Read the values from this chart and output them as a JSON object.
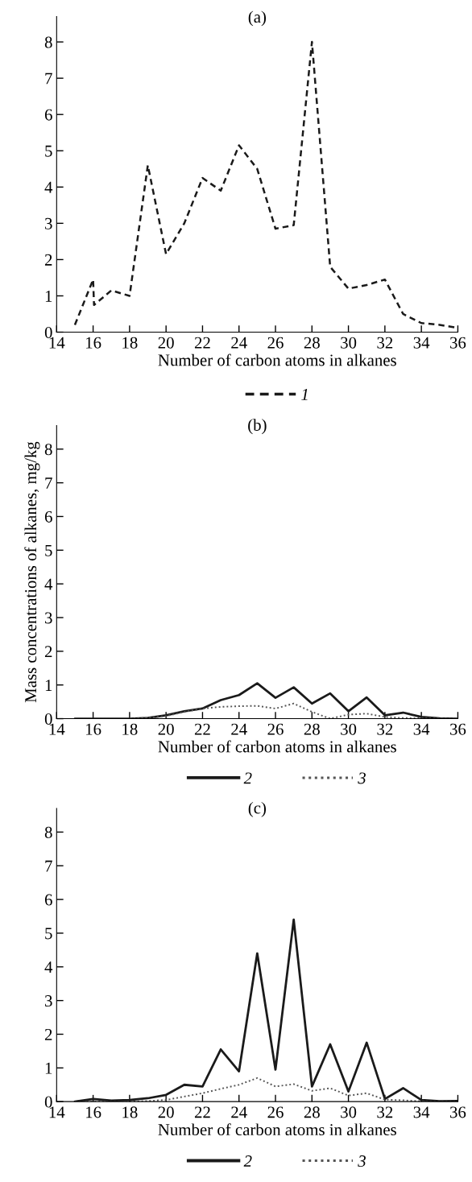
{
  "chart_data": [
    {
      "type": "line",
      "title": "(a)",
      "xlabel": "Number of carbon atoms in alkanes",
      "xlim": [
        14,
        36
      ],
      "xticks": [
        14,
        16,
        18,
        20,
        22,
        24,
        26,
        28,
        30,
        32,
        34,
        36
      ],
      "ylim": [
        0,
        8.7
      ],
      "yticks": [
        0,
        1,
        2,
        3,
        4,
        5,
        6,
        7,
        8
      ],
      "legend": "bottom",
      "grid": false,
      "series": [
        {
          "name": "1",
          "color": "#1a1a1a",
          "line_style": "dashed",
          "x": [
            15,
            16,
            16.05,
            17,
            18,
            19,
            20,
            21,
            22,
            23,
            24,
            25,
            26,
            27,
            28,
            29,
            30,
            31,
            32,
            33,
            34,
            35,
            36
          ],
          "values": [
            0.2,
            1.45,
            0.75,
            1.15,
            1.0,
            4.6,
            2.15,
            3.0,
            4.25,
            3.9,
            5.15,
            4.5,
            2.85,
            2.95,
            8.0,
            1.8,
            1.2,
            1.3,
            1.45,
            0.5,
            0.25,
            0.2,
            0.12
          ]
        }
      ]
    },
    {
      "type": "line",
      "title": "(b)",
      "xlabel": "Number of carbon atoms in alkanes",
      "ylabel": "Mass concentrations of alkanes, mg/kg",
      "xlim": [
        14,
        36
      ],
      "xticks": [
        14,
        16,
        18,
        20,
        22,
        24,
        26,
        28,
        30,
        32,
        34,
        36
      ],
      "ylim": [
        0,
        8.7
      ],
      "yticks": [
        0,
        1,
        2,
        3,
        4,
        5,
        6,
        7,
        8
      ],
      "legend": "bottom",
      "grid": false,
      "series": [
        {
          "name": "2",
          "color": "#1a1a1a",
          "line_style": "solid",
          "x": [
            15,
            16,
            17,
            18,
            19,
            20,
            21,
            22,
            23,
            24,
            25,
            26,
            27,
            28,
            29,
            30,
            31,
            32,
            33,
            34,
            35,
            36
          ],
          "values": [
            0,
            0,
            0,
            0,
            0.02,
            0.1,
            0.22,
            0.3,
            0.55,
            0.7,
            1.05,
            0.62,
            0.93,
            0.45,
            0.75,
            0.22,
            0.63,
            0.1,
            0.18,
            0.05,
            0.01,
            0
          ]
        },
        {
          "name": "3",
          "color": "#555555",
          "line_style": "dotted",
          "x": [
            15,
            16,
            17,
            18,
            19,
            20,
            21,
            22,
            23,
            24,
            25,
            26,
            27,
            28,
            29,
            30,
            31,
            32,
            33,
            34,
            35,
            36
          ],
          "values": [
            0,
            0,
            0,
            0,
            0.02,
            0.08,
            0.2,
            0.3,
            0.35,
            0.37,
            0.38,
            0.3,
            0.45,
            0.2,
            0.0,
            0.12,
            0.15,
            0.05,
            0.02,
            0.01,
            0,
            0
          ]
        }
      ]
    },
    {
      "type": "line",
      "title": "(c)",
      "xlabel": "Number of carbon atoms in alkanes",
      "xlim": [
        14,
        36
      ],
      "xticks": [
        14,
        16,
        18,
        20,
        22,
        24,
        26,
        28,
        30,
        32,
        34,
        36
      ],
      "ylim": [
        0,
        8.7
      ],
      "yticks": [
        0,
        1,
        2,
        3,
        4,
        5,
        6,
        7,
        8
      ],
      "legend": "bottom",
      "grid": false,
      "series": [
        {
          "name": "2",
          "color": "#1a1a1a",
          "line_style": "solid",
          "x": [
            15,
            16,
            17,
            18,
            19,
            20,
            21,
            22,
            23,
            24,
            25,
            26,
            27,
            28,
            29,
            30,
            31,
            32,
            33,
            34,
            35,
            36
          ],
          "values": [
            0,
            0.08,
            0.03,
            0.05,
            0.1,
            0.2,
            0.5,
            0.45,
            1.55,
            0.9,
            4.4,
            0.95,
            5.4,
            0.45,
            1.7,
            0.3,
            1.75,
            0.08,
            0.4,
            0.05,
            0.01,
            0.02
          ]
        },
        {
          "name": "3",
          "color": "#555555",
          "line_style": "dotted",
          "x": [
            15,
            16,
            17,
            18,
            19,
            20,
            21,
            22,
            23,
            24,
            25,
            26,
            27,
            28,
            29,
            30,
            31,
            32,
            33,
            34,
            35,
            36
          ],
          "values": [
            0,
            0,
            0,
            0,
            0.02,
            0.05,
            0.15,
            0.25,
            0.38,
            0.5,
            0.7,
            0.45,
            0.52,
            0.32,
            0.4,
            0.18,
            0.25,
            0.06,
            0.04,
            0.01,
            0,
            0
          ]
        }
      ]
    }
  ]
}
